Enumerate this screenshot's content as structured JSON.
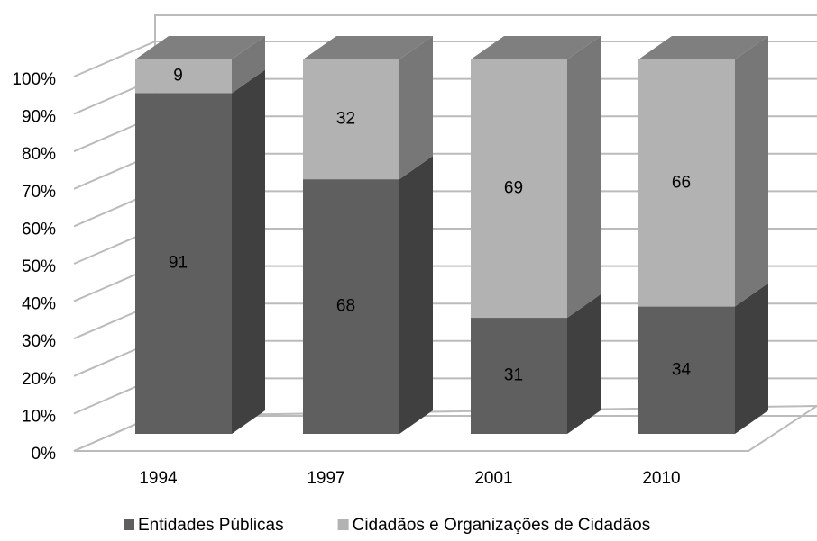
{
  "chart_data": {
    "type": "bar3d_stacked",
    "categories": [
      "1994",
      "1997",
      "2001",
      "2010"
    ],
    "series": [
      {
        "name": "Entidades Públicas",
        "color": "#5f5f5f",
        "values": [
          91,
          68,
          31,
          34
        ]
      },
      {
        "name": "Cidadãos e Organizações de Cidadãos",
        "color": "#b2b2b2",
        "values": [
          9,
          32,
          69,
          66
        ]
      }
    ],
    "ylim": [
      0,
      100
    ],
    "yticks": [
      {
        "value": 0,
        "label": "0%"
      },
      {
        "value": 10,
        "label": "10%"
      },
      {
        "value": 20,
        "label": "20%"
      },
      {
        "value": 30,
        "label": "30%"
      },
      {
        "value": 40,
        "label": "40%"
      },
      {
        "value": 50,
        "label": "50%"
      },
      {
        "value": 60,
        "label": "60%"
      },
      {
        "value": 70,
        "label": "70%"
      },
      {
        "value": 80,
        "label": "80%"
      },
      {
        "value": 90,
        "label": "90%"
      },
      {
        "value": 100,
        "label": "100%"
      }
    ],
    "grid": true,
    "legend": "bottom"
  }
}
